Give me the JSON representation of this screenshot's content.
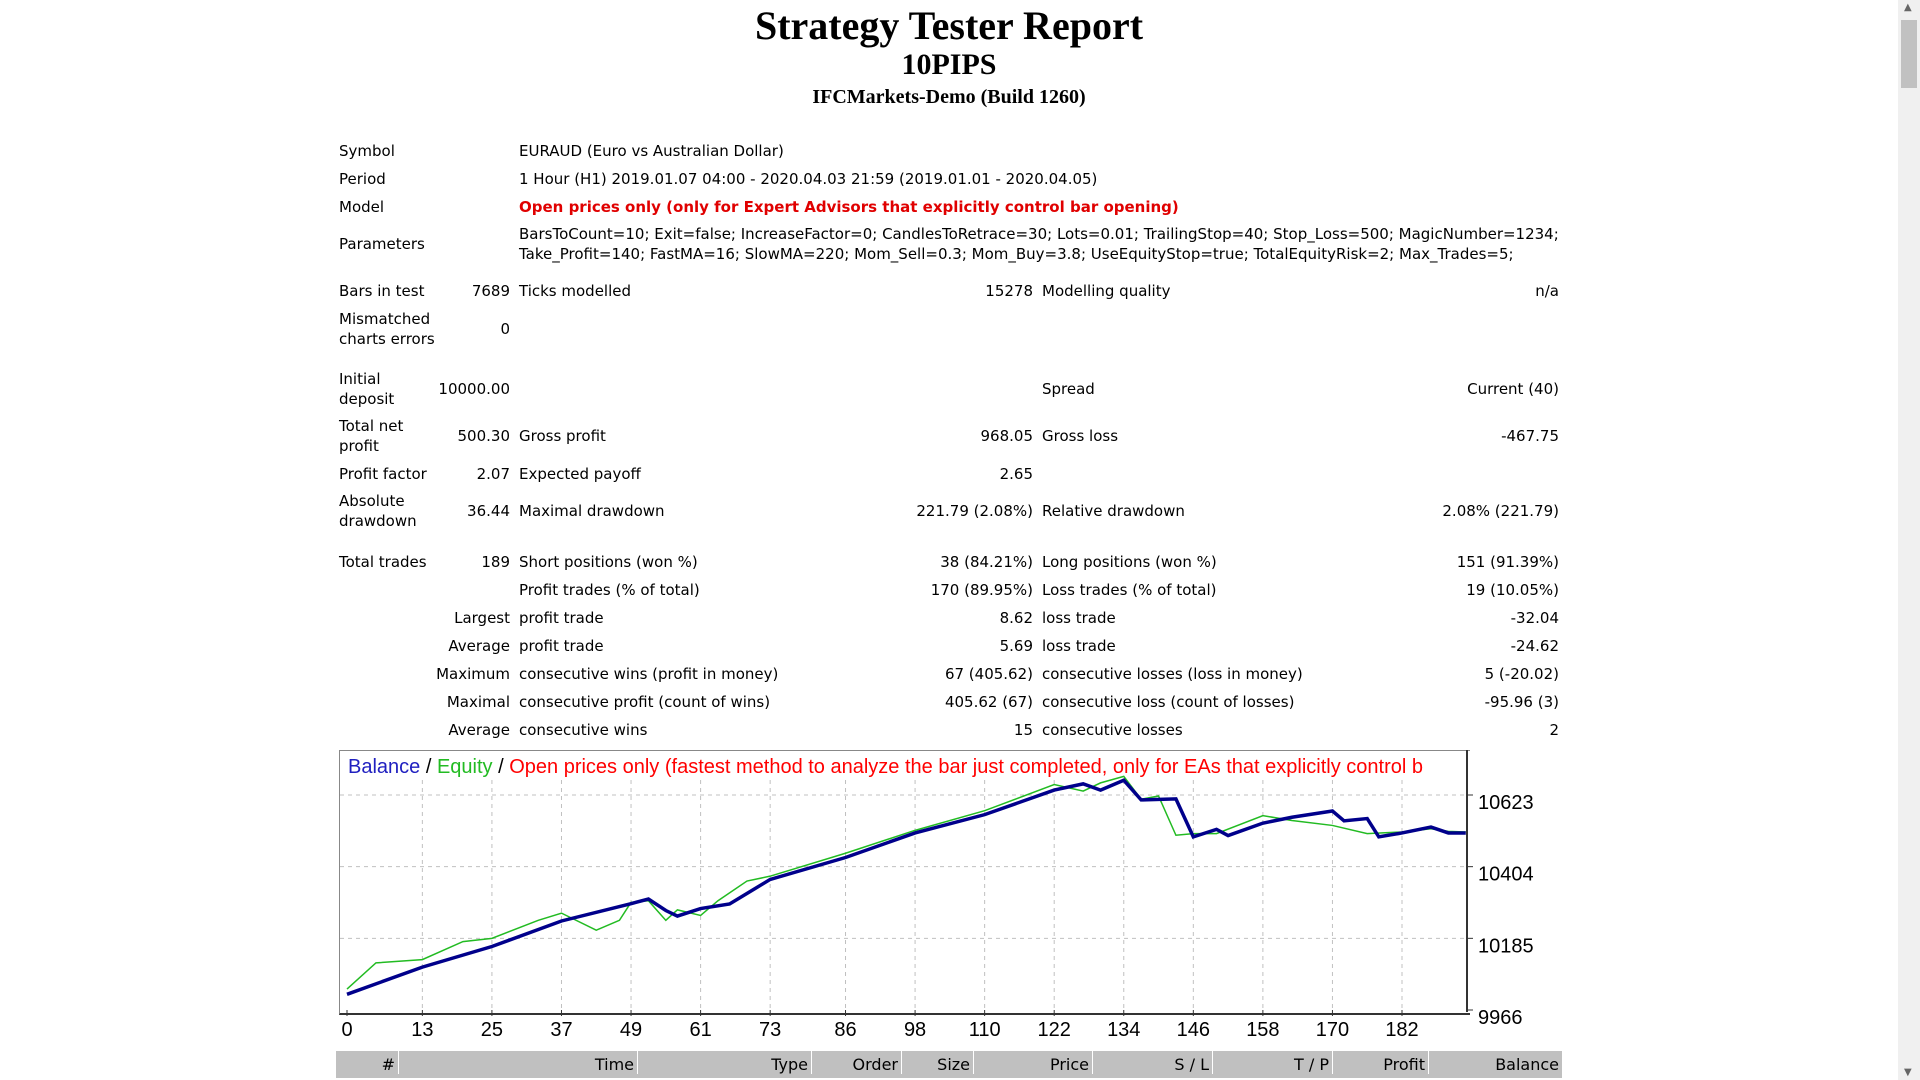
{
  "header": {
    "title": "Strategy Tester Report",
    "expert": "10PIPS",
    "server": "IFCMarkets-Demo (Build 1260)"
  },
  "info": {
    "symbol_label": "Symbol",
    "symbol": "EURAUD (Euro vs Australian Dollar)",
    "period_label": "Period",
    "period": "1 Hour (H1) 2019.01.07 04:00 - 2020.04.03 21:59 (2019.01.01 - 2020.04.05)",
    "model_label": "Model",
    "model": "Open prices only (only for Expert Advisors that explicitly control bar opening)",
    "parameters_label": "Parameters",
    "parameters_1": "BarsToCount=10; Exit=false; IncreaseFactor=0; CandlesToRetrace=30; Lots=0.01; TrailingStop=40; Stop_Loss=500; MagicNumber=1234;",
    "parameters_2": "Take_Profit=140; FastMA=16; SlowMA=220; Mom_Sell=0.3; Mom_Buy=3.8; UseEquityStop=true; TotalEquityRisk=2; Max_Trades=5;"
  },
  "stats": {
    "bars_label": "Bars in test",
    "bars": "7689",
    "ticks_label": "Ticks modelled",
    "ticks": "15278",
    "quality_label": "Modelling quality",
    "quality": "n/a",
    "mismatch_label_1": "Mismatched",
    "mismatch_label_2": "charts errors",
    "mismatch": "0",
    "deposit_label_1": "Initial",
    "deposit_label_2": "deposit",
    "deposit": "10000.00",
    "spread_label": "Spread",
    "spread": "Current (40)",
    "net_label_1": "Total net",
    "net_label_2": "profit",
    "net": "500.30",
    "gross_profit_label": "Gross profit",
    "gross_profit": "968.05",
    "gross_loss_label": "Gross loss",
    "gross_loss": "-467.75",
    "pf_label": "Profit factor",
    "pf": "2.07",
    "payoff_label": "Expected payoff",
    "payoff": "2.65",
    "abs_dd_label_1": "Absolute",
    "abs_dd_label_2": "drawdown",
    "abs_dd": "36.44",
    "max_dd_label": "Maximal drawdown",
    "max_dd": "221.79 (2.08%)",
    "rel_dd_label": "Relative drawdown",
    "rel_dd": "2.08% (221.79)",
    "trades_label": "Total trades",
    "trades": "189",
    "short_label": "Short positions (won %)",
    "short": "38 (84.21%)",
    "long_label": "Long positions (won %)",
    "long": "151 (91.39%)",
    "profit_trades_label": "Profit trades (% of total)",
    "profit_trades": "170 (89.95%)",
    "loss_trades_label": "Loss trades (% of total)",
    "loss_trades": "19 (10.05%)",
    "largest": "Largest",
    "largest_profit_label": "profit trade",
    "largest_profit": "8.62",
    "largest_loss_label": "loss trade",
    "largest_loss": "-32.04",
    "average": "Average",
    "avg_profit_label": "profit trade",
    "avg_profit": "5.69",
    "avg_loss_label": "loss trade",
    "avg_loss": "-24.62",
    "maximum": "Maximum",
    "max_wins_label": "consecutive wins (profit in money)",
    "max_wins": "67 (405.62)",
    "max_losses_label": "consecutive losses (loss in money)",
    "max_losses": "5 (-20.02)",
    "maximal": "Maximal",
    "maximal_profit_label": "consecutive profit (count of wins)",
    "maximal_profit": "405.62 (67)",
    "maximal_loss_label": "consecutive loss (count of losses)",
    "maximal_loss": "-95.96 (3)",
    "average2": "Average",
    "avg_wins_label": "consecutive wins",
    "avg_wins": "15",
    "avg_losses_label": "consecutive losses",
    "avg_losses": "2"
  },
  "chart_data": {
    "type": "line",
    "title_balance": "Balance",
    "title_sep": " / ",
    "title_equity": "Equity",
    "title_model": "Open prices only (fastest method to analyze the bar just completed, only for EAs that explicitly control b",
    "colors": {
      "balance": "#00008b",
      "equity": "#22bb22",
      "model": "#ff0000",
      "grid": "#c0c0c0"
    },
    "x_ticks": [
      0,
      13,
      25,
      37,
      49,
      61,
      73,
      86,
      98,
      110,
      122,
      134,
      146,
      158,
      170,
      182
    ],
    "y_ticks": [
      9966,
      10185,
      10404,
      10623
    ],
    "xlim": [
      0,
      193
    ],
    "ylim": [
      9966,
      10680
    ],
    "grid": true,
    "series": [
      {
        "name": "Balance",
        "x": [
          0,
          13,
          25,
          37,
          49,
          52,
          55,
          57,
          61,
          66,
          73,
          86,
          98,
          110,
          122,
          127,
          130,
          134,
          137,
          143,
          146,
          150,
          152,
          158,
          163,
          170,
          172,
          176,
          178,
          182,
          187,
          190,
          193
        ],
        "y": [
          10014,
          10097,
          10160,
          10238,
          10291,
          10305,
          10270,
          10253,
          10276,
          10290,
          10365,
          10432,
          10507,
          10563,
          10638,
          10657,
          10638,
          10668,
          10608,
          10611,
          10495,
          10518,
          10499,
          10537,
          10555,
          10574,
          10544,
          10551,
          10495,
          10507,
          10525,
          10507,
          10507
        ]
      },
      {
        "name": "Equity",
        "x": [
          0,
          5,
          13,
          20,
          25,
          33,
          37,
          43,
          47,
          49,
          52,
          55,
          57,
          61,
          64,
          69,
          73,
          86,
          98,
          110,
          122,
          127,
          130,
          134,
          137,
          140,
          143,
          146,
          150,
          158,
          163,
          170,
          176,
          182,
          187,
          190,
          193
        ],
        "y": [
          10030,
          10110,
          10120,
          10175,
          10185,
          10240,
          10262,
          10210,
          10240,
          10295,
          10300,
          10240,
          10272,
          10255,
          10300,
          10360,
          10375,
          10445,
          10515,
          10575,
          10655,
          10635,
          10660,
          10680,
          10610,
          10620,
          10500,
          10505,
          10505,
          10560,
          10545,
          10530,
          10505,
          10510,
          10520,
          10512,
          10510
        ]
      }
    ]
  },
  "table_header": [
    "#",
    "Time",
    "Type",
    "Order",
    "Size",
    "Price",
    "S / L",
    "T / P",
    "Profit",
    "Balance"
  ]
}
